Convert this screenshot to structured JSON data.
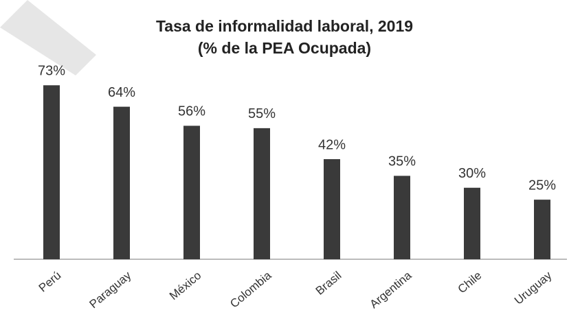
{
  "chart_data": {
    "type": "bar",
    "title": "Tasa de informalidad laboral, 2019",
    "subtitle": "(% de la PEA Ocupada)",
    "categories": [
      "Perú",
      "Paraguay",
      "México",
      "Colombia",
      "Brasil",
      "Argentina",
      "Chile",
      "Uruguay"
    ],
    "values": [
      73,
      64,
      56,
      55,
      42,
      35,
      30,
      25
    ],
    "value_labels": [
      "73%",
      "64%",
      "56%",
      "55%",
      "42%",
      "35%",
      "30%",
      "25%"
    ],
    "color": "#3a3a3a",
    "ylim": [
      0,
      80
    ]
  }
}
